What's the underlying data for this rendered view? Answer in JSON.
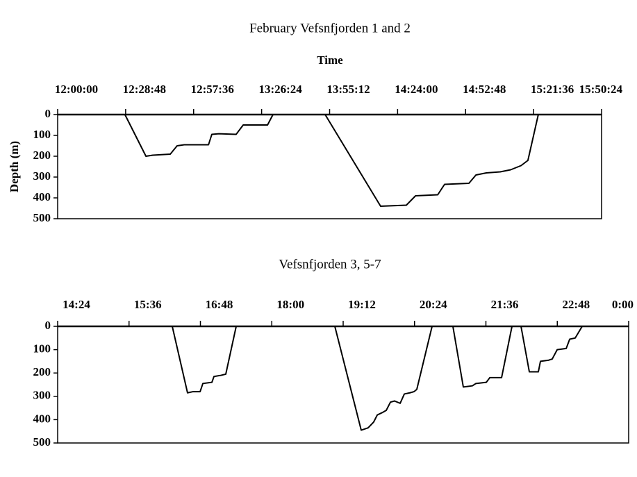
{
  "chart_data": [
    {
      "type": "line",
      "title": "February Vefsnfjorden 1 and 2",
      "xlabel": "Time",
      "ylabel": "Depth (m)",
      "x_axis_position": "top",
      "y_inverted": true,
      "color": "#000000",
      "xlim": [
        720,
        950.4
      ],
      "xticks": [
        {
          "value": 720,
          "label": "12:00:00"
        },
        {
          "value": 748.8,
          "label": "12:28:48"
        },
        {
          "value": 777.6,
          "label": "12:57:36"
        },
        {
          "value": 806.4,
          "label": "13:26:24"
        },
        {
          "value": 835.2,
          "label": "13:55:12"
        },
        {
          "value": 864,
          "label": "14:24:00"
        },
        {
          "value": 892.8,
          "label": "14:52:48"
        },
        {
          "value": 921.6,
          "label": "15:21:36"
        },
        {
          "value": 950.4,
          "label": "15:50:24"
        }
      ],
      "ylim": [
        0,
        500
      ],
      "yticks": [
        0,
        100,
        200,
        300,
        400,
        500
      ],
      "x": [
        748.5,
        757.4,
        760.3,
        767.7,
        770.6,
        773.6,
        783.9,
        785.3,
        788.3,
        795.6,
        798.6,
        808.9,
        811.2,
        null,
        833.3,
        856.8,
        867.7,
        871.6,
        881.0,
        883.9,
        894.2,
        897.2,
        901.6,
        907.5,
        911.9,
        916.3,
        919.2,
        923.6
      ],
      "values": [
        0,
        200,
        195,
        190,
        150,
        145,
        145,
        95,
        92,
        95,
        50,
        50,
        0,
        null,
        0,
        440,
        435,
        390,
        385,
        335,
        330,
        290,
        280,
        275,
        265,
        245,
        220,
        0
      ]
    },
    {
      "type": "line",
      "title": "Vefsnfjorden 3, 5-7",
      "x_axis_position": "top",
      "y_inverted": true,
      "color": "#000000",
      "xlim": [
        864,
        1440
      ],
      "xticks": [
        {
          "value": 864,
          "label": "14:24"
        },
        {
          "value": 936,
          "label": "15:36"
        },
        {
          "value": 1008,
          "label": "16:48"
        },
        {
          "value": 1080,
          "label": "18:00"
        },
        {
          "value": 1152,
          "label": "19:12"
        },
        {
          "value": 1224,
          "label": "20:24"
        },
        {
          "value": 1296,
          "label": "21:36"
        },
        {
          "value": 1368,
          "label": "22:48"
        },
        {
          "value": 1440,
          "label": "0:00"
        }
      ],
      "ylim": [
        0,
        500
      ],
      "yticks": [
        0,
        100,
        200,
        300,
        400,
        500
      ],
      "x": [
        979.6,
        995.0,
        1000.6,
        1007.7,
        1010.5,
        1019.6,
        1021.7,
        1028.7,
        1033.6,
        1044.1,
        null,
        1143.6,
        1170.2,
        1177.2,
        1182.8,
        1186.4,
        1191.3,
        1195.5,
        1199.7,
        1203.9,
        1209.5,
        1213.7,
        1219.3,
        1223.5,
        1226.3,
        1241.7,
        null,
        1262.7,
        1273.2,
        1282.3,
        1285.9,
        1296.4,
        1299.9,
        1311.8,
        1322.3,
        null,
        1331.4,
        1339.8,
        1348.9,
        1351.0,
        1359.4,
        1362.9,
        1367.9,
        1377.0,
        1380.5,
        1386.1,
        1393.1
      ],
      "values": [
        0,
        285,
        280,
        280,
        245,
        240,
        215,
        210,
        205,
        0,
        null,
        0,
        445,
        435,
        410,
        380,
        370,
        360,
        325,
        320,
        330,
        290,
        285,
        280,
        270,
        0,
        null,
        0,
        260,
        255,
        245,
        240,
        220,
        220,
        0,
        null,
        0,
        195,
        195,
        150,
        145,
        140,
        100,
        95,
        55,
        50,
        0
      ]
    }
  ]
}
